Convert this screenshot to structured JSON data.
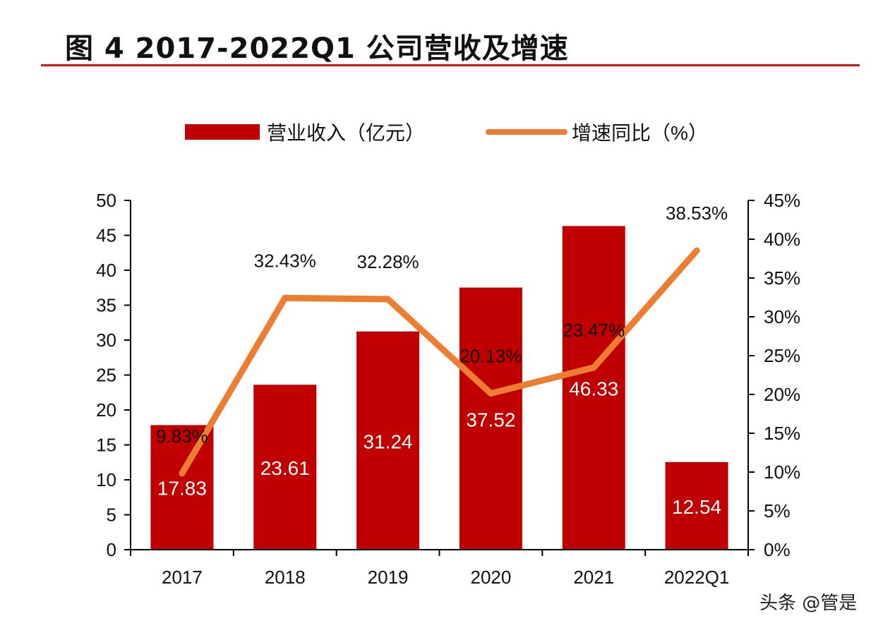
{
  "title": "图 4 2017-2022Q1 公司营收及增速",
  "watermark": "头条 @管是",
  "chart_data": {
    "type": "bar+line",
    "categories": [
      "2017",
      "2018",
      "2019",
      "2020",
      "2021",
      "2022Q1"
    ],
    "series": [
      {
        "name": "营业收入（亿元）",
        "type": "bar",
        "axis": "left",
        "color": "#C00000",
        "values": [
          17.83,
          23.61,
          31.24,
          37.52,
          46.33,
          12.54
        ],
        "labels": [
          "17.83",
          "23.61",
          "31.24",
          "37.52",
          "46.33",
          "12.54"
        ]
      },
      {
        "name": "增速同比（%）",
        "type": "line",
        "axis": "right",
        "color": "#ED7D31",
        "values": [
          9.83,
          32.43,
          32.28,
          20.13,
          23.47,
          38.53
        ],
        "labels": [
          "9.83%",
          "32.43%",
          "32.28%",
          "20.13%",
          "23.47%",
          "38.53%"
        ]
      }
    ],
    "left_axis": {
      "range": [
        0,
        50
      ],
      "ticks": [
        "0",
        "5",
        "10",
        "15",
        "20",
        "25",
        "30",
        "35",
        "40",
        "45",
        "50"
      ]
    },
    "right_axis": {
      "range": [
        0,
        45
      ],
      "ticks": [
        "0%",
        "5%",
        "10%",
        "15%",
        "20%",
        "25%",
        "30%",
        "35%",
        "40%",
        "45%"
      ]
    },
    "legend": {
      "placement": "top",
      "items": [
        "营业收入（亿元）",
        "增速同比（%）"
      ]
    },
    "grid": false
  }
}
